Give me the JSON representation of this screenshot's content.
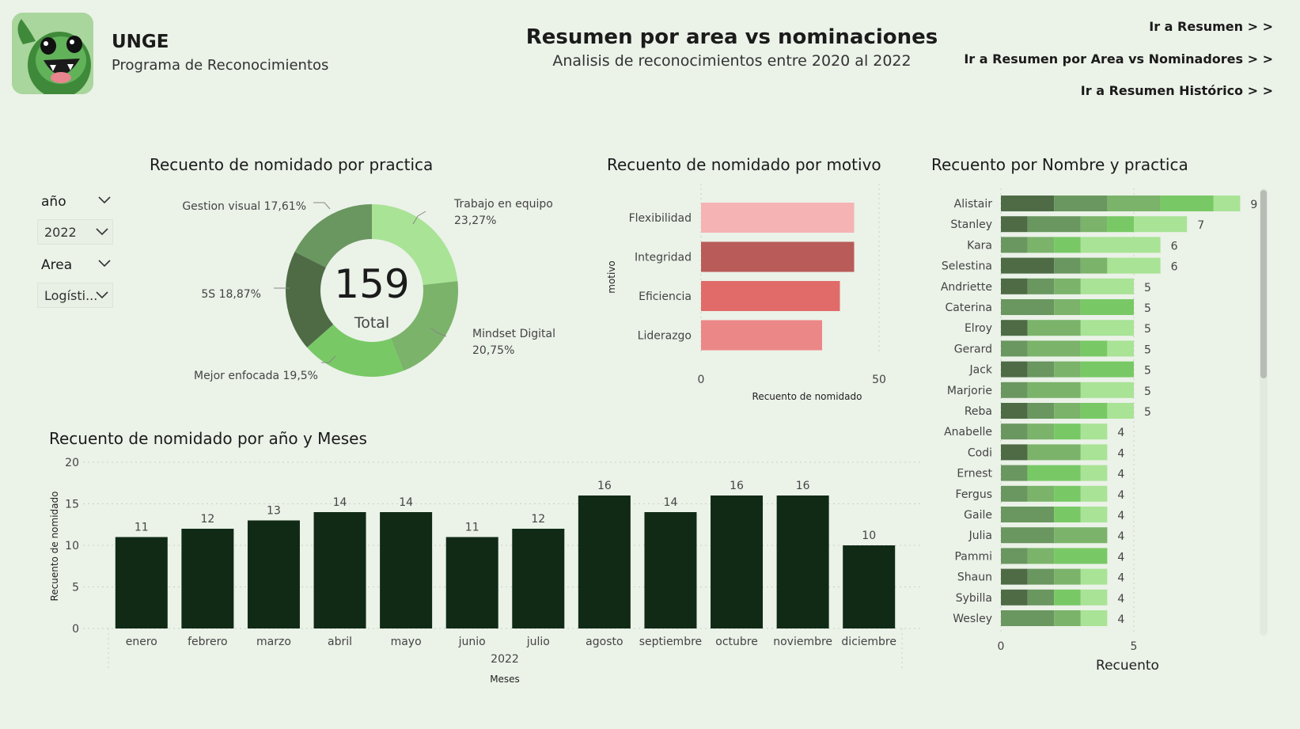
{
  "header": {
    "app_name": "UNGE",
    "app_subtitle": "Programa de Reconocimientos",
    "title": "Resumen por area vs nominaciones",
    "subtitle": "Analisis de reconocimientos entre 2020 al 2022",
    "logo_icon": "monster-logo-icon",
    "nav_links": [
      "Ir a Resumen > >",
      "Ir a Resumen por Area vs Nominadores > >",
      "Ir a Resumen Histórico > >"
    ]
  },
  "filters": {
    "year_label": "año",
    "year_value": "2022",
    "area_label": "Area",
    "area_value": "Logísti..."
  },
  "chart_data": [
    {
      "type": "pie",
      "title": "Recuento de nomidado por practica",
      "center_value": "159",
      "center_label": "Total",
      "categories": [
        "Trabajo en equipo",
        "Mindset Digital",
        "Mejor enfocada",
        "5S",
        "Gestion visual"
      ],
      "values": [
        23.27,
        20.75,
        19.5,
        18.87,
        17.61
      ],
      "labels": [
        "Trabajo en equipo",
        "23,27%",
        "Mindset Digital",
        "20,75%",
        "Mejor enfocada 19,5%",
        "5S 18,87%",
        "Gestion visual 17,61%"
      ],
      "colors": [
        "#a9e396",
        "#7bb36a",
        "#78c965",
        "#4e6b46",
        "#6a9660"
      ]
    },
    {
      "type": "bar",
      "orientation": "horizontal",
      "title": "Recuento de nomidado por motivo",
      "categories": [
        "Flexibilidad",
        "Integridad",
        "Eficiencia",
        "Liderazgo"
      ],
      "values": [
        43,
        43,
        39,
        34
      ],
      "colors": [
        "#f5b3b4",
        "#b95b59",
        "#e06b68",
        "#ec8787"
      ],
      "xlabel": "Recuento de nomidado",
      "ylabel": "motivo",
      "xlim": [
        0,
        50
      ],
      "xticks": [
        "0",
        "50"
      ]
    },
    {
      "type": "bar",
      "title": "Recuento de nomidado por año y Meses",
      "categories": [
        "enero",
        "febrero",
        "marzo",
        "abril",
        "mayo",
        "junio",
        "julio",
        "agosto",
        "septiembre",
        "octubre",
        "noviembre",
        "diciembre"
      ],
      "values": [
        11,
        12,
        13,
        14,
        14,
        11,
        12,
        16,
        14,
        16,
        16,
        10
      ],
      "group_label": "2022",
      "xlabel": "Meses",
      "ylabel": "Recuento de nomidado",
      "ylim": [
        0,
        20
      ],
      "yticks": [
        "0",
        "5",
        "10",
        "15",
        "20"
      ],
      "color": "#102a16"
    },
    {
      "type": "bar",
      "orientation": "horizontal",
      "stacked": true,
      "title": "Recuento por Nombre y practica",
      "xlabel": "Recuento",
      "xlim": [
        0,
        10
      ],
      "xticks": [
        "0",
        "5"
      ],
      "categories": [
        "Alistair",
        "Stanley",
        "Kara",
        "Selestina",
        "Andriette",
        "Caterina",
        "Elroy",
        "Gerard",
        "Jack",
        "Marjorie",
        "Reba",
        "Anabelle",
        "Codi",
        "Ernest",
        "Fergus",
        "Gaile",
        "Julia",
        "Pammi",
        "Shaun",
        "Sybilla",
        "Wesley"
      ],
      "totals": [
        9,
        7,
        6,
        6,
        5,
        5,
        5,
        5,
        5,
        5,
        5,
        4,
        4,
        4,
        4,
        4,
        4,
        4,
        4,
        4,
        4
      ],
      "series": [
        {
          "values": [
            2,
            1,
            0,
            2,
            1,
            0,
            1,
            0,
            1,
            0,
            1,
            0,
            1,
            0,
            0,
            0,
            0,
            0,
            1,
            1,
            0
          ]
        },
        {
          "values": [
            2,
            2,
            1,
            1,
            1,
            2,
            0,
            1,
            1,
            1,
            1,
            1,
            0,
            1,
            1,
            2,
            2,
            1,
            1,
            1,
            2
          ]
        },
        {
          "values": [
            2,
            1,
            1,
            1,
            1,
            1,
            2,
            2,
            1,
            2,
            1,
            1,
            2,
            0,
            1,
            0,
            2,
            1,
            1,
            0,
            1
          ]
        },
        {
          "values": [
            2,
            1,
            1,
            0,
            0,
            2,
            0,
            1,
            2,
            0,
            1,
            1,
            0,
            2,
            1,
            1,
            0,
            2,
            0,
            1,
            0
          ]
        },
        {
          "values": [
            1,
            2,
            3,
            2,
            2,
            0,
            2,
            1,
            0,
            2,
            1,
            1,
            1,
            1,
            1,
            1,
            0,
            0,
            1,
            1,
            1
          ]
        }
      ],
      "colors": [
        "#4e6b46",
        "#6a9660",
        "#7bb36a",
        "#78c965",
        "#a9e396"
      ]
    }
  ]
}
